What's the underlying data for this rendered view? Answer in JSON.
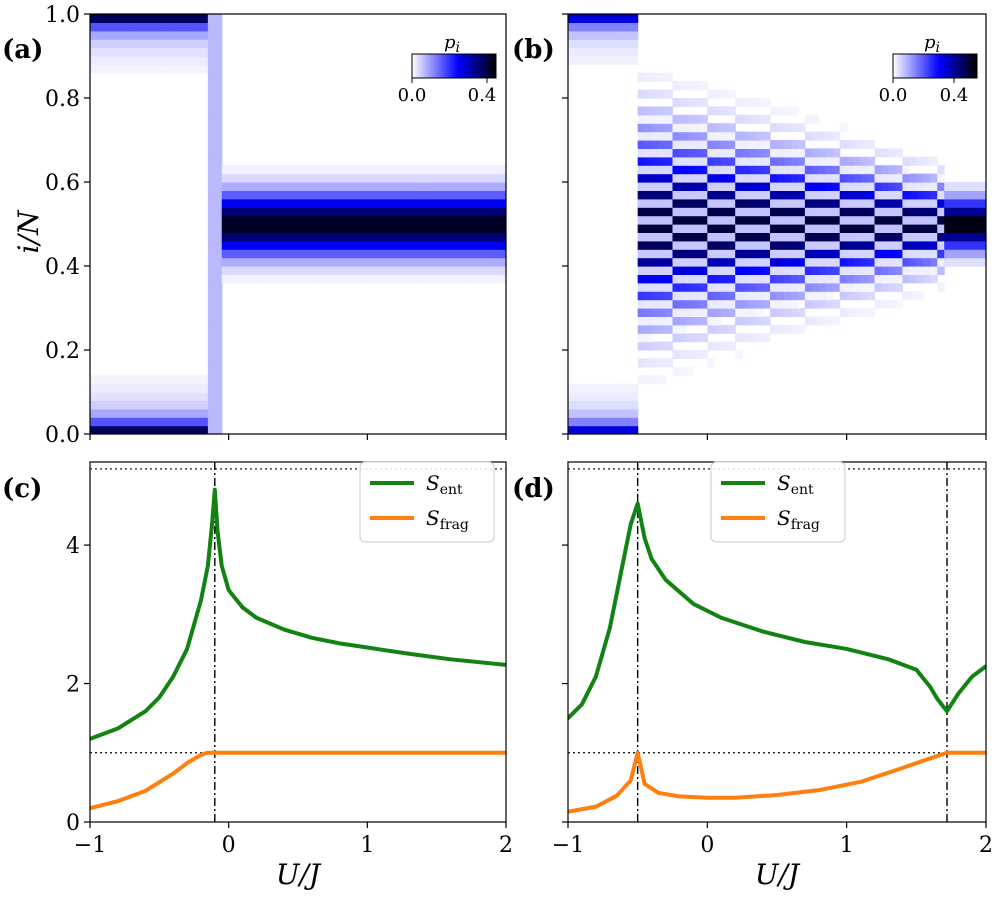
{
  "chart_data": [
    {
      "panel": "(a)",
      "type": "heatmap",
      "xlabel": "",
      "ylabel": "i/N",
      "xlim": [
        -1,
        2
      ],
      "ylim": [
        0,
        1
      ],
      "x_ticks": [
        -1,
        0,
        1,
        2
      ],
      "y_ticks": [
        0.0,
        0.2,
        0.4,
        0.6,
        0.8,
        1.0
      ],
      "y_tick_labels": [
        "0.0",
        "0.2",
        "0.4",
        "0.6",
        "0.8",
        "1.0"
      ],
      "colorbar": {
        "label": "p_i",
        "min": 0.0,
        "max": 0.45,
        "tick_labels": [
          "0.0",
          "0.4"
        ],
        "colors": [
          "#ffffff",
          "#0000ff",
          "#000000"
        ]
      },
      "description": "Edge-localized weight (i/N near 0 and 1) for U/J < -0.1; single central band around i/N = 0.5 for U/J > -0.1",
      "transition_u": -0.1
    },
    {
      "panel": "(b)",
      "type": "heatmap",
      "xlim": [
        -1,
        2
      ],
      "ylim": [
        0,
        1
      ],
      "x_ticks": [
        -1,
        0,
        1,
        2
      ],
      "colorbar": {
        "label": "p_i",
        "min": 0.0,
        "max": 0.55,
        "tick_labels": [
          "0.0",
          "0.4"
        ],
        "colors": [
          "#ffffff",
          "#0000ff",
          "#000000"
        ]
      },
      "description": "Edge-localized weight for U/J < -0.5; checkerboard stripes between -0.5 and 1.7; central band above 1.7",
      "transition_u": [
        -0.5,
        1.7
      ]
    },
    {
      "panel": "(c)",
      "type": "line",
      "xlabel": "U/J",
      "ylabel": "",
      "xlim": [
        -1,
        2
      ],
      "ylim": [
        0,
        5.2
      ],
      "x_ticks": [
        -1,
        0,
        1,
        2
      ],
      "x_tick_labels": [
        "−1",
        "0",
        "1",
        "2"
      ],
      "y_ticks": [
        0,
        2,
        4
      ],
      "y_tick_labels": [
        "0",
        "2",
        "4"
      ],
      "hlines": [
        5.1,
        1.0
      ],
      "vlines": [
        -0.1
      ],
      "legend": [
        "S_ent",
        "S_frag"
      ],
      "series": [
        {
          "name": "S_ent",
          "color": "#128312",
          "x": [
            -1,
            -0.8,
            -0.6,
            -0.5,
            -0.4,
            -0.3,
            -0.2,
            -0.15,
            -0.12,
            -0.1,
            -0.08,
            -0.05,
            0.0,
            0.1,
            0.2,
            0.4,
            0.6,
            0.8,
            1.0,
            1.3,
            1.6,
            2.0
          ],
          "y": [
            1.2,
            1.35,
            1.6,
            1.8,
            2.1,
            2.5,
            3.2,
            3.7,
            4.3,
            4.8,
            4.2,
            3.7,
            3.35,
            3.1,
            2.95,
            2.78,
            2.66,
            2.58,
            2.52,
            2.43,
            2.35,
            2.27
          ]
        },
        {
          "name": "S_frag",
          "color": "#ff7f0e",
          "x": [
            -1,
            -0.8,
            -0.6,
            -0.4,
            -0.3,
            -0.2,
            -0.15,
            -0.1,
            0.0,
            1.0,
            2.0
          ],
          "y": [
            0.2,
            0.3,
            0.45,
            0.7,
            0.85,
            0.97,
            1.0,
            1.0,
            1.0,
            1.0,
            1.0
          ]
        }
      ]
    },
    {
      "panel": "(d)",
      "type": "line",
      "xlim": [
        -1,
        2
      ],
      "ylim": [
        0,
        5.2
      ],
      "x_ticks": [
        -1,
        0,
        1,
        2
      ],
      "x_tick_labels": [
        "−1",
        "0",
        "1",
        "2"
      ],
      "xlabel": "U/J",
      "hlines": [
        5.1,
        1.0
      ],
      "vlines": [
        -0.5,
        1.72
      ],
      "legend": [
        "S_ent",
        "S_frag"
      ],
      "series": [
        {
          "name": "S_ent",
          "color": "#128312",
          "x": [
            -1,
            -0.9,
            -0.8,
            -0.7,
            -0.6,
            -0.55,
            -0.5,
            -0.45,
            -0.4,
            -0.3,
            -0.1,
            0.1,
            0.4,
            0.7,
            1.0,
            1.3,
            1.5,
            1.6,
            1.65,
            1.72,
            1.8,
            1.9,
            2.0
          ],
          "y": [
            1.5,
            1.7,
            2.1,
            2.8,
            3.8,
            4.3,
            4.6,
            4.1,
            3.8,
            3.5,
            3.15,
            2.95,
            2.75,
            2.6,
            2.5,
            2.35,
            2.2,
            1.95,
            1.78,
            1.6,
            1.85,
            2.1,
            2.25
          ]
        },
        {
          "name": "S_frag",
          "color": "#ff7f0e",
          "x": [
            -1,
            -0.8,
            -0.65,
            -0.55,
            -0.5,
            -0.45,
            -0.35,
            -0.2,
            0.0,
            0.2,
            0.5,
            0.8,
            1.1,
            1.4,
            1.6,
            1.72,
            1.8,
            2.0
          ],
          "y": [
            0.15,
            0.22,
            0.38,
            0.6,
            1.0,
            0.55,
            0.42,
            0.37,
            0.35,
            0.35,
            0.39,
            0.46,
            0.58,
            0.78,
            0.92,
            1.0,
            1.0,
            1.0
          ]
        }
      ]
    }
  ],
  "labels": {
    "panel_a": "(a)",
    "panel_b": "(b)",
    "panel_c": "(c)",
    "panel_d": "(d)",
    "y_axis_top": "i/N",
    "x_axis_c": "U/J",
    "x_axis_d": "U/J",
    "colorbar_label": "p",
    "colorbar_sub": "i",
    "legend_ent": "S",
    "legend_ent_sub": "ent",
    "legend_frag": "S",
    "legend_frag_sub": "frag"
  },
  "colors": {
    "ent": "#128312",
    "frag": "#ff7f0e",
    "heat_low": "#ffffff",
    "heat_mid": "#0000ff",
    "heat_high": "#000000"
  }
}
